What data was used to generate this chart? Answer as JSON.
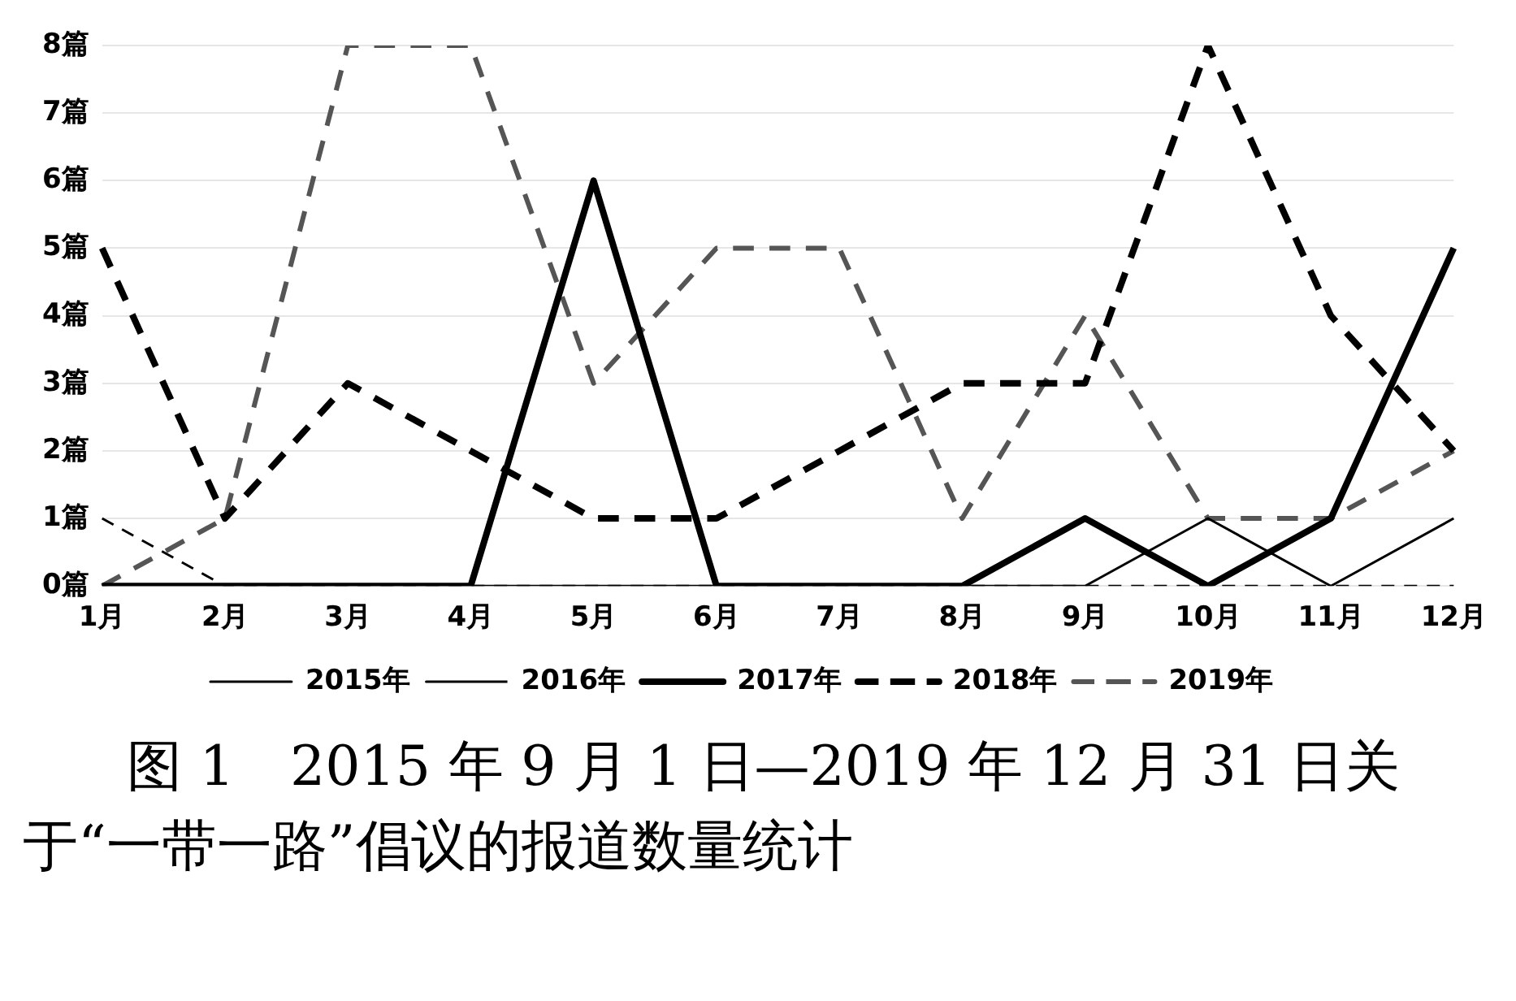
{
  "chart_data": {
    "type": "line",
    "categories": [
      "1月",
      "2月",
      "3月",
      "4月",
      "5月",
      "6月",
      "7月",
      "8月",
      "9月",
      "10月",
      "11月",
      "12月"
    ],
    "series": [
      {
        "name": "2015年",
        "color": "#000000",
        "line_style": "solid",
        "values": [
          0,
          0,
          0,
          0,
          0,
          0,
          0,
          0,
          0,
          1,
          0,
          1
        ]
      },
      {
        "name": "2016年",
        "color": "#000000",
        "line_style": "dashed",
        "values": [
          1,
          0,
          0,
          0,
          0,
          0,
          0,
          0,
          0,
          0,
          0,
          0
        ]
      },
      {
        "name": "2017年",
        "color": "#000000",
        "line_style": "solid",
        "values": [
          0,
          0,
          0,
          0,
          6,
          0,
          0,
          0,
          1,
          0,
          1,
          5
        ]
      },
      {
        "name": "2018年",
        "color": "#000000",
        "line_style": "dashed",
        "values": [
          5,
          1,
          3,
          2,
          1,
          1,
          2,
          3,
          3,
          8,
          4,
          2
        ]
      },
      {
        "name": "2019年",
        "color": "#555555",
        "line_style": "dashed",
        "values": [
          0,
          1,
          8,
          8,
          3,
          5,
          5,
          1,
          4,
          1,
          1,
          2
        ]
      }
    ],
    "ylim": [
      0,
      8
    ],
    "yticks": [
      {
        "value": 0,
        "label": "0篇"
      },
      {
        "value": 1,
        "label": "1篇"
      },
      {
        "value": 2,
        "label": "2篇"
      },
      {
        "value": 3,
        "label": "3篇"
      },
      {
        "value": 4,
        "label": "4篇"
      },
      {
        "value": 5,
        "label": "5篇"
      },
      {
        "value": 6,
        "label": "6篇"
      },
      {
        "value": 7,
        "label": "7篇"
      },
      {
        "value": 8,
        "label": "8篇"
      }
    ],
    "grid": "y",
    "legend": "bottom",
    "marker": "none",
    "annotations": [
      "图 1　2015 年 9 月 1 日—2019 年 12 月 31 日关于“一带一路”倡议的报道数量统计"
    ]
  }
}
